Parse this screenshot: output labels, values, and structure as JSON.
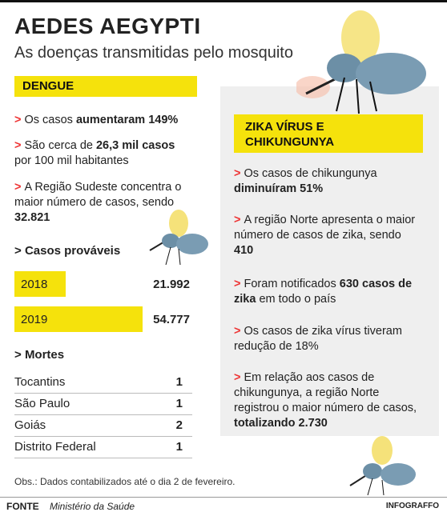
{
  "header": {
    "title": "AEDES AEGYPTI",
    "subtitle": "As doenças transmitidas pelo mosquito"
  },
  "dengue": {
    "heading": "DENGUE",
    "items": [
      [
        {
          "text": "Os casos "
        },
        {
          "text": "aumentaram 149%",
          "bold": true
        }
      ],
      [
        {
          "text": "São cerca de "
        },
        {
          "text": "26,3 mil casos",
          "bold": true
        },
        {
          "text": " por 100 mil habitantes"
        }
      ],
      [
        {
          "text": "A Região Sudeste concentra o maior número de casos, sendo "
        },
        {
          "text": "32.821",
          "bold": true
        }
      ]
    ],
    "probable": {
      "heading": "Casos prováveis",
      "color": "#f5e20c",
      "rows": [
        {
          "year": "2018",
          "cases": {
            "value": 21992,
            "label": "21.992"
          }
        },
        {
          "year": "2019",
          "cases": {
            "value": 54777,
            "label": "54.777"
          }
        }
      ]
    },
    "deaths": {
      "heading": "Mortes",
      "rows": [
        {
          "state": "Tocantins",
          "count": 1
        },
        {
          "state": "São Paulo",
          "count": 1
        },
        {
          "state": "Goiás",
          "count": 2
        },
        {
          "state": "Distrito Federal",
          "count": 1
        }
      ]
    }
  },
  "zika": {
    "heading": "ZIKA VÍRUS E CHIKUNGUNYA",
    "items": [
      [
        {
          "text": "Os casos de chikungunya "
        },
        {
          "text": "diminuíram 51%",
          "bold": true
        }
      ],
      [
        {
          "text": "A região Norte apresenta o maior número de casos de zika, sendo "
        },
        {
          "text": "410",
          "bold": true
        }
      ],
      [
        {
          "text": "Foram notificados "
        },
        {
          "text": "630 casos de zika",
          "bold": true
        },
        {
          "text": " em todo o país"
        }
      ],
      [
        {
          "text": "Os casos de zika vírus tiveram redução de 18%"
        }
      ],
      [
        {
          "text": "Em relação aos casos de chikungunya, a região Norte registrou o maior número de casos, "
        },
        {
          "text": "totalizando 2.730",
          "bold": true
        }
      ]
    ]
  },
  "note": "Obs.: Dados contabilizados até o dia 2 de fevereiro.",
  "footer": {
    "source_label": "FONTE",
    "source": "Ministério da Saúde",
    "brand": "INFOGRAFFO"
  }
}
